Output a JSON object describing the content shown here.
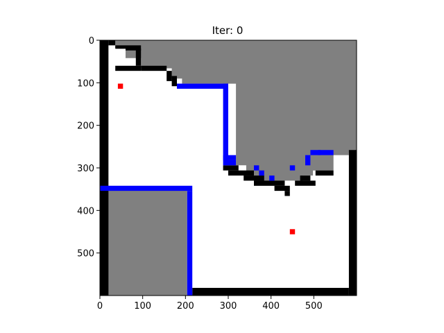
{
  "title": "Iter: 0",
  "colors": {
    "free": "#ffffff",
    "unknown": "#808080",
    "wall": "#000000",
    "frontier": "#0000ff",
    "marker": "#ff0000",
    "axis": "#000000"
  },
  "grid": {
    "cell_size": 12,
    "extent": [
      600,
      600
    ]
  },
  "x_ticks": [
    "0",
    "100",
    "200",
    "300",
    "400",
    "500"
  ],
  "y_ticks": [
    "0",
    "100",
    "200",
    "300",
    "400",
    "500"
  ],
  "x_tick_values": [
    0,
    100,
    200,
    300,
    400,
    500
  ],
  "y_tick_values": [
    0,
    100,
    200,
    300,
    400,
    500
  ],
  "unknown_regions": [
    [
      [
        36,
        0
      ],
      [
        600,
        0
      ],
      [
        600,
        264
      ],
      [
        582,
        264
      ],
      [
        582,
        270
      ],
      [
        546,
        270
      ],
      [
        546,
        306
      ],
      [
        498,
        306
      ],
      [
        498,
        318
      ],
      [
        474,
        318
      ],
      [
        474,
        330
      ],
      [
        432,
        330
      ],
      [
        432,
        342
      ],
      [
        360,
        342
      ],
      [
        360,
        318
      ],
      [
        342,
        318
      ],
      [
        342,
        294
      ],
      [
        318,
        294
      ],
      [
        318,
        102
      ],
      [
        192,
        102
      ],
      [
        192,
        90
      ],
      [
        168,
        90
      ],
      [
        168,
        66
      ],
      [
        96,
        66
      ],
      [
        96,
        42
      ],
      [
        60,
        42
      ],
      [
        60,
        18
      ],
      [
        36,
        18
      ]
    ],
    [
      [
        0,
        348
      ],
      [
        204,
        348
      ],
      [
        204,
        600
      ],
      [
        0,
        600
      ]
    ]
  ],
  "walls": [
    [
      0,
      0,
      20,
      600
    ],
    [
      20,
      0,
      36,
      12
    ],
    [
      36,
      12,
      60,
      20
    ],
    [
      60,
      12,
      96,
      24
    ],
    [
      84,
      20,
      96,
      60
    ],
    [
      36,
      60,
      96,
      72
    ],
    [
      96,
      60,
      156,
      72
    ],
    [
      156,
      72,
      168,
      96
    ],
    [
      168,
      84,
      180,
      108
    ],
    [
      288,
      294,
      324,
      306
    ],
    [
      300,
      306,
      360,
      318
    ],
    [
      336,
      318,
      384,
      330
    ],
    [
      360,
      330,
      432,
      342
    ],
    [
      408,
      342,
      444,
      354
    ],
    [
      432,
      354,
      444,
      366
    ],
    [
      456,
      330,
      504,
      342
    ],
    [
      468,
      318,
      492,
      330
    ],
    [
      504,
      306,
      546,
      318
    ],
    [
      582,
      258,
      600,
      600
    ],
    [
      216,
      582,
      582,
      600
    ]
  ],
  "frontiers": [
    [
      180,
      102,
      300,
      114
    ],
    [
      288,
      102,
      300,
      294
    ],
    [
      288,
      270,
      318,
      282
    ],
    [
      300,
      282,
      318,
      294
    ],
    [
      360,
      294,
      372,
      306
    ],
    [
      372,
      306,
      384,
      318
    ],
    [
      396,
      318,
      408,
      330
    ],
    [
      480,
      270,
      492,
      294
    ],
    [
      492,
      258,
      516,
      270
    ],
    [
      510,
      258,
      546,
      270
    ],
    [
      444,
      294,
      456,
      306
    ],
    [
      0,
      342,
      216,
      354
    ],
    [
      204,
      354,
      216,
      600
    ]
  ],
  "markers": [
    [
      48,
      108
    ],
    [
      450,
      450
    ]
  ]
}
